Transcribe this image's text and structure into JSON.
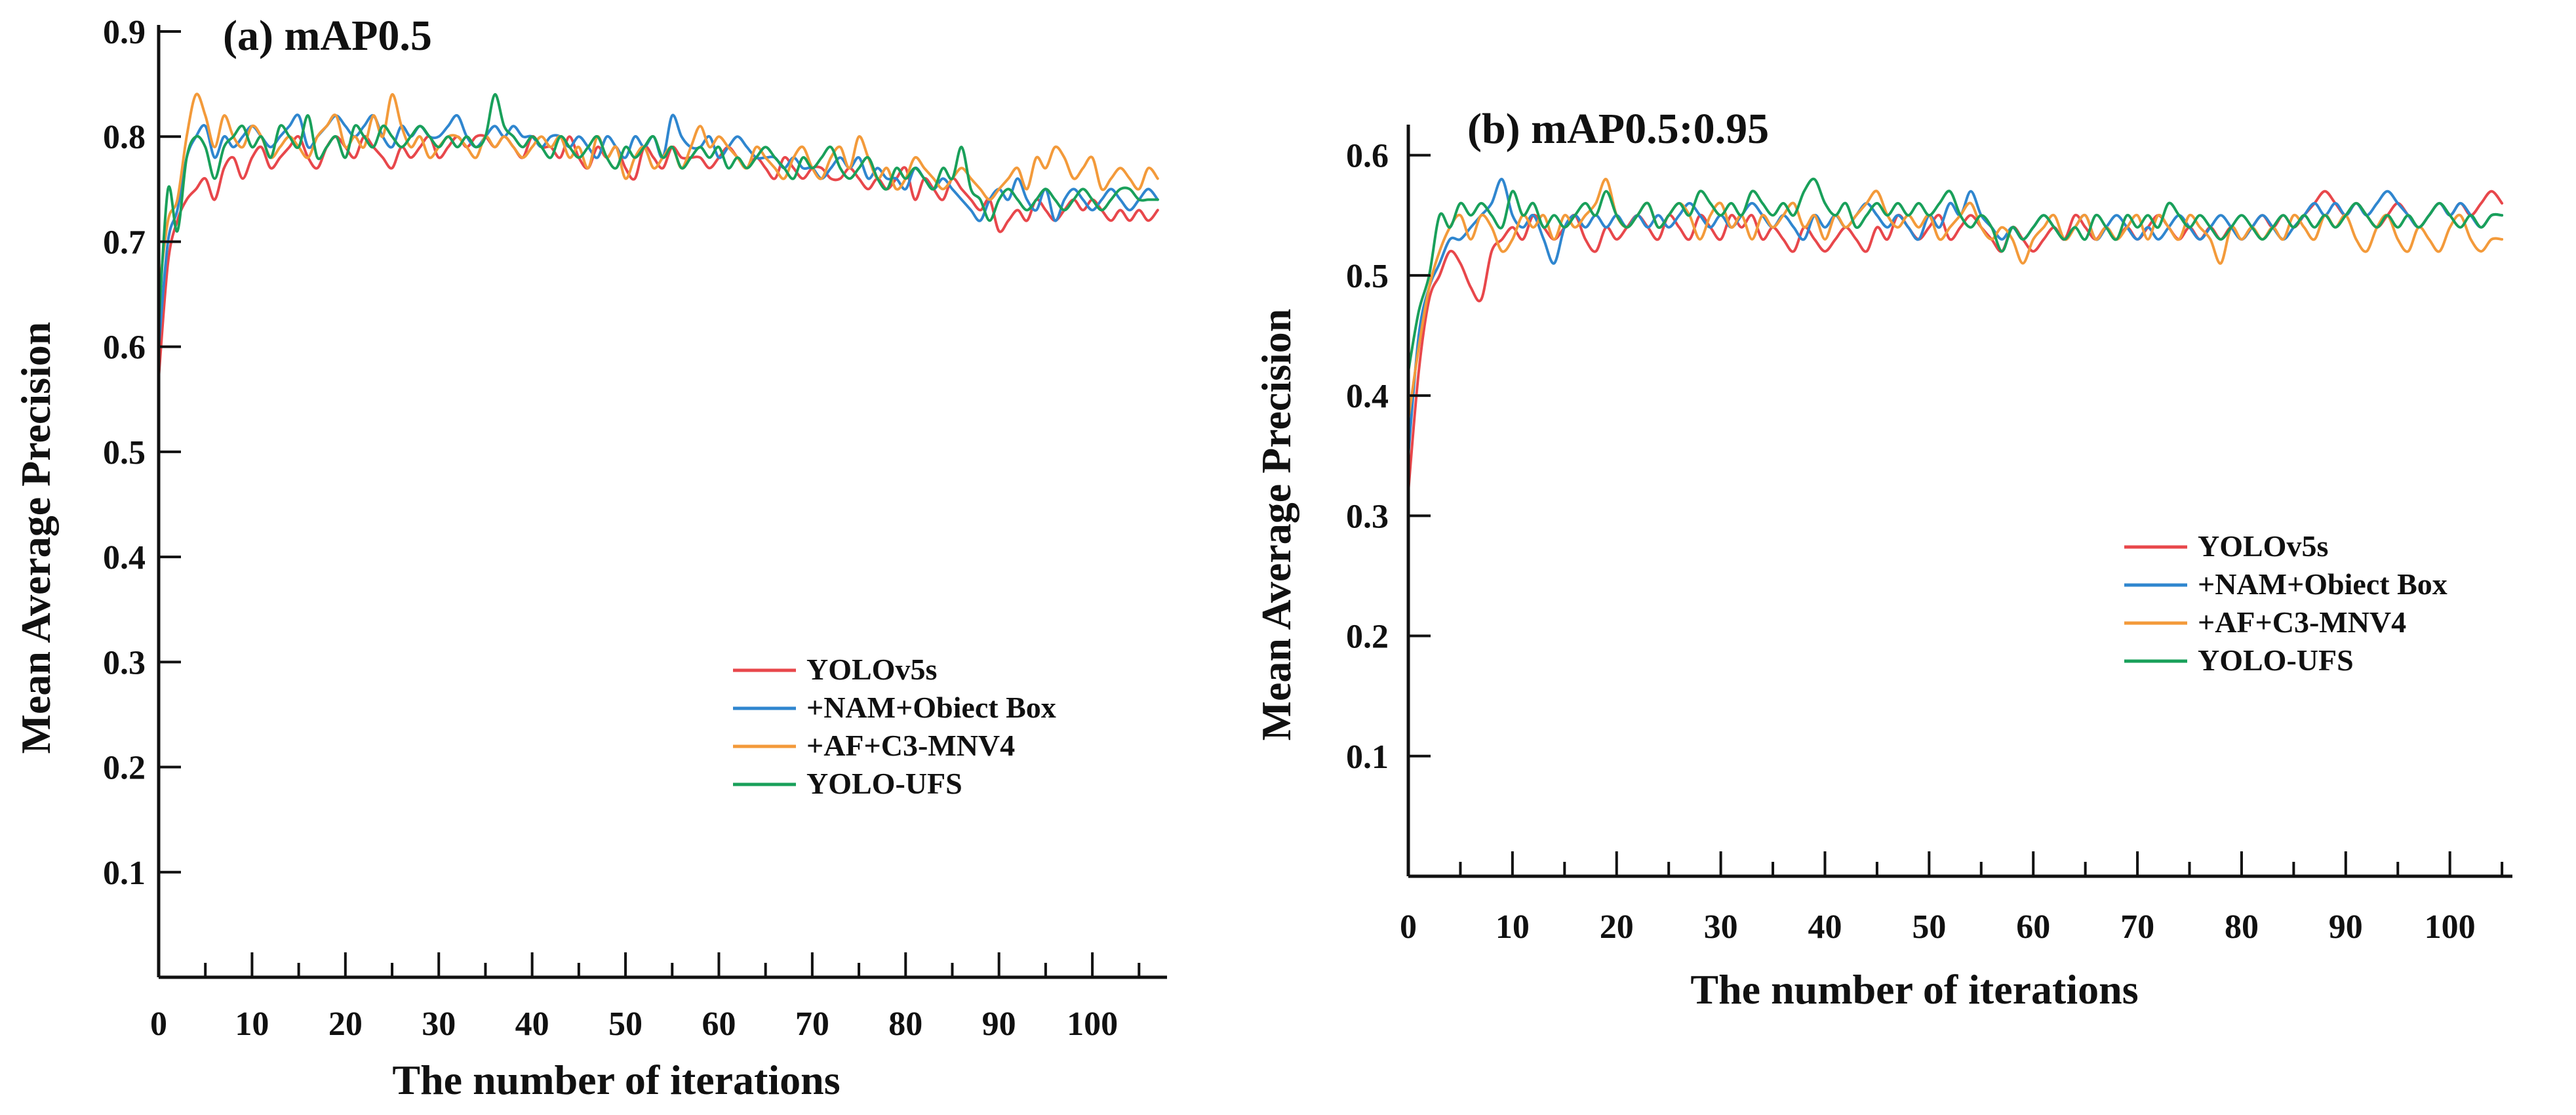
{
  "colors": {
    "YOLOv5s": "#e8474b",
    "+NAM+Obiect Box": "#2f86cf",
    "+AF+C3-MNV4": "#f39a3a",
    "YOLO-UFS": "#19a05a"
  },
  "chart_data": [
    {
      "type": "line",
      "title": "(a) mAP0.5",
      "xlabel": "The number of iterations",
      "ylabel": "Mean Average Precision",
      "xlim": [
        0,
        108
      ],
      "ylim": [
        0,
        0.9
      ],
      "x_ticks": [
        0,
        10,
        20,
        30,
        40,
        50,
        60,
        70,
        80,
        90,
        100
      ],
      "y_ticks": [
        0.1,
        0.2,
        0.3,
        0.4,
        0.5,
        0.6,
        0.7,
        0.8,
        0.9
      ],
      "legend_position": "lower-right",
      "series": [
        {
          "name": "YOLOv5s",
          "values": [
            0.57,
            0.68,
            0.72,
            0.74,
            0.75,
            0.76,
            0.74,
            0.77,
            0.78,
            0.76,
            0.78,
            0.79,
            0.77,
            0.78,
            0.79,
            0.8,
            0.78,
            0.77,
            0.79,
            0.8,
            0.79,
            0.78,
            0.8,
            0.79,
            0.78,
            0.77,
            0.79,
            0.78,
            0.79,
            0.8,
            0.78,
            0.79,
            0.8,
            0.79,
            0.8,
            0.8,
            0.79,
            0.8,
            0.79,
            0.78,
            0.8,
            0.79,
            0.79,
            0.78,
            0.8,
            0.78,
            0.77,
            0.79,
            0.78,
            0.79,
            0.77,
            0.76,
            0.79,
            0.78,
            0.77,
            0.79,
            0.78,
            0.78,
            0.78,
            0.77,
            0.78,
            0.79,
            0.78,
            0.77,
            0.78,
            0.77,
            0.76,
            0.78,
            0.77,
            0.76,
            0.77,
            0.77,
            0.76,
            0.76,
            0.77,
            0.76,
            0.75,
            0.76,
            0.75,
            0.76,
            0.77,
            0.74,
            0.76,
            0.75,
            0.74,
            0.76,
            0.75,
            0.74,
            0.73,
            0.74,
            0.71,
            0.72,
            0.73,
            0.72,
            0.74,
            0.73,
            0.72,
            0.73,
            0.74,
            0.73,
            0.74,
            0.73,
            0.72,
            0.73,
            0.72,
            0.73,
            0.72,
            0.73
          ]
        },
        {
          "name": "+NAM+Obiect Box",
          "values": [
            0.6,
            0.7,
            0.73,
            0.78,
            0.8,
            0.81,
            0.78,
            0.8,
            0.79,
            0.8,
            0.81,
            0.8,
            0.79,
            0.8,
            0.81,
            0.82,
            0.79,
            0.8,
            0.81,
            0.82,
            0.81,
            0.8,
            0.81,
            0.82,
            0.8,
            0.79,
            0.81,
            0.8,
            0.81,
            0.8,
            0.8,
            0.81,
            0.82,
            0.8,
            0.79,
            0.8,
            0.81,
            0.8,
            0.81,
            0.8,
            0.8,
            0.79,
            0.8,
            0.8,
            0.79,
            0.8,
            0.79,
            0.78,
            0.8,
            0.79,
            0.78,
            0.8,
            0.79,
            0.8,
            0.78,
            0.82,
            0.8,
            0.79,
            0.79,
            0.8,
            0.78,
            0.79,
            0.8,
            0.79,
            0.78,
            0.78,
            0.78,
            0.77,
            0.78,
            0.77,
            0.77,
            0.76,
            0.77,
            0.78,
            0.77,
            0.78,
            0.76,
            0.77,
            0.76,
            0.76,
            0.75,
            0.77,
            0.76,
            0.75,
            0.76,
            0.75,
            0.74,
            0.73,
            0.72,
            0.74,
            0.75,
            0.74,
            0.76,
            0.74,
            0.73,
            0.75,
            0.72,
            0.74,
            0.75,
            0.74,
            0.73,
            0.74,
            0.75,
            0.74,
            0.73,
            0.74,
            0.75,
            0.74
          ]
        },
        {
          "name": "+AF+C3-MNV4",
          "values": [
            0.65,
            0.72,
            0.74,
            0.8,
            0.84,
            0.82,
            0.79,
            0.82,
            0.8,
            0.79,
            0.81,
            0.8,
            0.78,
            0.79,
            0.8,
            0.79,
            0.78,
            0.8,
            0.81,
            0.82,
            0.79,
            0.8,
            0.79,
            0.82,
            0.8,
            0.84,
            0.81,
            0.79,
            0.8,
            0.78,
            0.79,
            0.8,
            0.8,
            0.79,
            0.78,
            0.8,
            0.79,
            0.8,
            0.79,
            0.78,
            0.79,
            0.8,
            0.79,
            0.8,
            0.78,
            0.79,
            0.77,
            0.8,
            0.78,
            0.79,
            0.76,
            0.78,
            0.79,
            0.77,
            0.78,
            0.79,
            0.77,
            0.79,
            0.81,
            0.79,
            0.8,
            0.79,
            0.78,
            0.77,
            0.79,
            0.78,
            0.77,
            0.76,
            0.78,
            0.79,
            0.77,
            0.76,
            0.78,
            0.79,
            0.77,
            0.8,
            0.78,
            0.76,
            0.77,
            0.75,
            0.76,
            0.78,
            0.77,
            0.76,
            0.75,
            0.76,
            0.77,
            0.76,
            0.75,
            0.74,
            0.75,
            0.76,
            0.77,
            0.75,
            0.78,
            0.77,
            0.79,
            0.78,
            0.76,
            0.77,
            0.78,
            0.75,
            0.76,
            0.77,
            0.76,
            0.75,
            0.77,
            0.76
          ]
        },
        {
          "name": "YOLO-UFS",
          "values": [
            0.62,
            0.75,
            0.71,
            0.78,
            0.8,
            0.79,
            0.76,
            0.79,
            0.8,
            0.81,
            0.79,
            0.8,
            0.78,
            0.81,
            0.8,
            0.79,
            0.82,
            0.78,
            0.79,
            0.8,
            0.78,
            0.81,
            0.8,
            0.79,
            0.81,
            0.8,
            0.79,
            0.8,
            0.81,
            0.8,
            0.79,
            0.8,
            0.79,
            0.8,
            0.79,
            0.8,
            0.84,
            0.81,
            0.8,
            0.79,
            0.8,
            0.79,
            0.78,
            0.8,
            0.79,
            0.78,
            0.79,
            0.8,
            0.78,
            0.77,
            0.79,
            0.78,
            0.79,
            0.8,
            0.78,
            0.79,
            0.77,
            0.78,
            0.79,
            0.78,
            0.79,
            0.77,
            0.78,
            0.77,
            0.78,
            0.79,
            0.78,
            0.77,
            0.76,
            0.78,
            0.77,
            0.78,
            0.79,
            0.77,
            0.76,
            0.77,
            0.78,
            0.76,
            0.75,
            0.77,
            0.76,
            0.77,
            0.76,
            0.75,
            0.77,
            0.76,
            0.79,
            0.75,
            0.74,
            0.72,
            0.74,
            0.75,
            0.74,
            0.73,
            0.74,
            0.75,
            0.74,
            0.73,
            0.74,
            0.75,
            0.74,
            0.73,
            0.74,
            0.75,
            0.75,
            0.74,
            0.74,
            0.74
          ]
        }
      ]
    },
    {
      "type": "line",
      "title": "(b) mAP0.5:0.95",
      "xlabel": "The number of iterations",
      "ylabel": "Mean Average Precision",
      "xlim": [
        0,
        106
      ],
      "ylim": [
        0,
        0.62
      ],
      "x_ticks": [
        0,
        10,
        20,
        30,
        40,
        50,
        60,
        70,
        80,
        90,
        100
      ],
      "y_ticks": [
        0.1,
        0.2,
        0.3,
        0.4,
        0.5,
        0.6
      ],
      "legend_position": "center-right",
      "series": [
        {
          "name": "YOLOv5s",
          "values": [
            0.32,
            0.42,
            0.48,
            0.5,
            0.52,
            0.51,
            0.49,
            0.48,
            0.52,
            0.53,
            0.54,
            0.53,
            0.55,
            0.54,
            0.53,
            0.54,
            0.55,
            0.53,
            0.52,
            0.54,
            0.53,
            0.54,
            0.55,
            0.54,
            0.53,
            0.55,
            0.54,
            0.53,
            0.55,
            0.54,
            0.53,
            0.55,
            0.54,
            0.55,
            0.53,
            0.54,
            0.53,
            0.52,
            0.54,
            0.53,
            0.52,
            0.53,
            0.54,
            0.53,
            0.52,
            0.54,
            0.53,
            0.55,
            0.54,
            0.53,
            0.54,
            0.55,
            0.53,
            0.54,
            0.55,
            0.54,
            0.53,
            0.52,
            0.54,
            0.53,
            0.52,
            0.53,
            0.54,
            0.53,
            0.55,
            0.54,
            0.53,
            0.54,
            0.53,
            0.54,
            0.53,
            0.54,
            0.55,
            0.54,
            0.53,
            0.54,
            0.53,
            0.54,
            0.53,
            0.54,
            0.53,
            0.54,
            0.55,
            0.54,
            0.55,
            0.54,
            0.55,
            0.56,
            0.57,
            0.56,
            0.55,
            0.56,
            0.55,
            0.54,
            0.55,
            0.56,
            0.55,
            0.54,
            0.55,
            0.56,
            0.55,
            0.56,
            0.55,
            0.56,
            0.57,
            0.56
          ]
        },
        {
          "name": "+NAM+Obiect Box",
          "values": [
            0.35,
            0.45,
            0.49,
            0.51,
            0.53,
            0.53,
            0.54,
            0.55,
            0.56,
            0.58,
            0.55,
            0.54,
            0.55,
            0.53,
            0.51,
            0.54,
            0.55,
            0.54,
            0.55,
            0.54,
            0.55,
            0.54,
            0.55,
            0.54,
            0.55,
            0.54,
            0.55,
            0.56,
            0.55,
            0.54,
            0.55,
            0.54,
            0.55,
            0.56,
            0.55,
            0.54,
            0.55,
            0.54,
            0.53,
            0.55,
            0.54,
            0.55,
            0.54,
            0.55,
            0.56,
            0.55,
            0.54,
            0.55,
            0.54,
            0.53,
            0.55,
            0.54,
            0.56,
            0.55,
            0.57,
            0.55,
            0.54,
            0.53,
            0.54,
            0.53,
            0.54,
            0.55,
            0.54,
            0.53,
            0.54,
            0.55,
            0.53,
            0.54,
            0.55,
            0.54,
            0.53,
            0.54,
            0.53,
            0.54,
            0.55,
            0.54,
            0.53,
            0.54,
            0.55,
            0.54,
            0.53,
            0.54,
            0.55,
            0.54,
            0.53,
            0.54,
            0.55,
            0.56,
            0.55,
            0.56,
            0.55,
            0.56,
            0.55,
            0.56,
            0.57,
            0.56,
            0.55,
            0.54,
            0.55,
            0.56,
            0.55,
            0.56,
            0.55,
            0.54,
            0.55,
            0.55
          ]
        },
        {
          "name": "+AF+C3-MNV4",
          "values": [
            0.38,
            0.44,
            0.49,
            0.52,
            0.54,
            0.55,
            0.53,
            0.55,
            0.54,
            0.52,
            0.53,
            0.55,
            0.54,
            0.55,
            0.53,
            0.55,
            0.54,
            0.55,
            0.56,
            0.58,
            0.55,
            0.54,
            0.55,
            0.56,
            0.54,
            0.55,
            0.56,
            0.55,
            0.53,
            0.55,
            0.56,
            0.54,
            0.55,
            0.53,
            0.55,
            0.54,
            0.55,
            0.56,
            0.54,
            0.55,
            0.53,
            0.55,
            0.54,
            0.55,
            0.56,
            0.57,
            0.55,
            0.54,
            0.55,
            0.54,
            0.55,
            0.53,
            0.54,
            0.55,
            0.56,
            0.54,
            0.53,
            0.54,
            0.53,
            0.51,
            0.53,
            0.54,
            0.55,
            0.53,
            0.54,
            0.55,
            0.53,
            0.54,
            0.53,
            0.54,
            0.55,
            0.53,
            0.55,
            0.54,
            0.53,
            0.55,
            0.54,
            0.53,
            0.51,
            0.54,
            0.53,
            0.54,
            0.53,
            0.54,
            0.53,
            0.55,
            0.54,
            0.53,
            0.55,
            0.54,
            0.55,
            0.53,
            0.52,
            0.54,
            0.55,
            0.53,
            0.52,
            0.54,
            0.53,
            0.52,
            0.54,
            0.55,
            0.53,
            0.52,
            0.53,
            0.53
          ]
        },
        {
          "name": "YOLO-UFS",
          "values": [
            0.42,
            0.47,
            0.5,
            0.55,
            0.54,
            0.56,
            0.55,
            0.56,
            0.55,
            0.54,
            0.57,
            0.55,
            0.56,
            0.54,
            0.55,
            0.54,
            0.55,
            0.56,
            0.55,
            0.57,
            0.55,
            0.54,
            0.55,
            0.56,
            0.54,
            0.55,
            0.56,
            0.55,
            0.57,
            0.56,
            0.55,
            0.56,
            0.55,
            0.57,
            0.56,
            0.55,
            0.56,
            0.55,
            0.57,
            0.58,
            0.56,
            0.55,
            0.56,
            0.54,
            0.55,
            0.56,
            0.55,
            0.56,
            0.55,
            0.56,
            0.55,
            0.56,
            0.57,
            0.55,
            0.54,
            0.55,
            0.54,
            0.52,
            0.54,
            0.53,
            0.54,
            0.55,
            0.54,
            0.53,
            0.54,
            0.53,
            0.55,
            0.54,
            0.53,
            0.55,
            0.54,
            0.55,
            0.54,
            0.56,
            0.55,
            0.54,
            0.55,
            0.54,
            0.53,
            0.54,
            0.55,
            0.54,
            0.53,
            0.54,
            0.55,
            0.54,
            0.55,
            0.54,
            0.55,
            0.54,
            0.55,
            0.56,
            0.55,
            0.54,
            0.55,
            0.54,
            0.55,
            0.54,
            0.55,
            0.56,
            0.55,
            0.54,
            0.55,
            0.54,
            0.55,
            0.55
          ]
        }
      ]
    }
  ]
}
